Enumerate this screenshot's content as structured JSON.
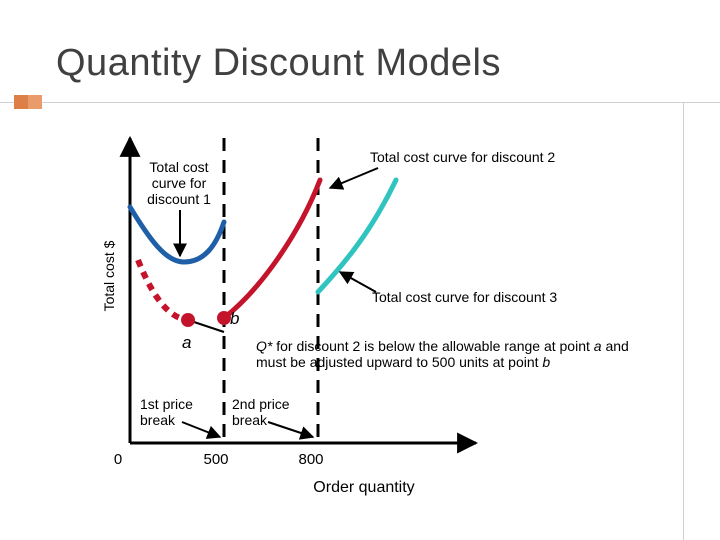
{
  "title": "Quantity Discount Models",
  "axis": {
    "ylabel": "Total cost $",
    "xlabel": "Order quantity",
    "origin": "0",
    "x_ticks": [
      "500",
      "800"
    ]
  },
  "curve_labels": {
    "discount1": [
      "Total cost",
      "curve for",
      "discount 1"
    ],
    "discount2": "Total cost curve for discount 2",
    "discount3": "Total cost curve for discount 3"
  },
  "price_breaks": {
    "first": [
      "1st price",
      "break"
    ],
    "second": [
      "2nd price",
      "break"
    ]
  },
  "points": {
    "a": "a",
    "b": "b"
  },
  "note": {
    "line1_q": "Q*",
    "line1_rest": " for discount 2 is below the allowable range at point ",
    "line1_a": "a",
    "line1_end": " and",
    "line2_start": "must be adjusted upward to 500 units at point ",
    "line2_b": "b"
  },
  "colors": {
    "discount1": "#1f5fa8",
    "discount2": "#c4142c",
    "discount3": "#2fc4c0",
    "accent": "#dd8047"
  }
}
